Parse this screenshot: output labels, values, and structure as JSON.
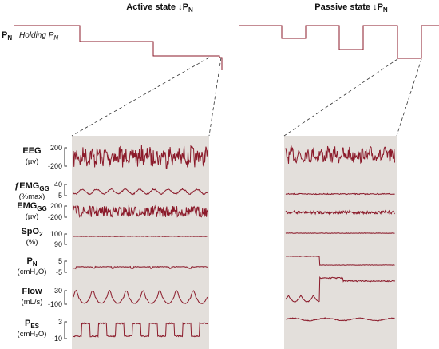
{
  "header": {
    "active": {
      "main": "Active state ↓P",
      "sub": "N"
    },
    "passive": {
      "main": "Passive state ↓P",
      "sub": "N"
    },
    "pn_label": {
      "main": "P",
      "sub": "N"
    },
    "holding": {
      "main": "Holding P",
      "sub": "N"
    }
  },
  "channels": [
    {
      "main": "EEG",
      "sub": "",
      "unit": "(µv)",
      "ticks": [
        200,
        -200
      ]
    },
    {
      "main": "ƒEMG",
      "sub": "GG",
      "unit": "(%max)",
      "ticks": [
        40,
        5
      ]
    },
    {
      "main": "EMG",
      "sub": "GG",
      "unit": "(µv)",
      "ticks": [
        200,
        -200
      ]
    },
    {
      "main": "SpO",
      "sub": "2",
      "unit": "(%)",
      "ticks": [
        100,
        90
      ]
    },
    {
      "main": "P",
      "sub": "N",
      "unit": "(cmH₂O)",
      "ticks": [
        5,
        -5
      ]
    },
    {
      "main": "Flow",
      "sub": "",
      "unit": "(mL/s)",
      "ticks": [
        30,
        -100
      ]
    },
    {
      "main": "P",
      "sub": "ES",
      "unit": "(cmH₂O)",
      "ticks": [
        3,
        -10
      ]
    }
  ]
}
